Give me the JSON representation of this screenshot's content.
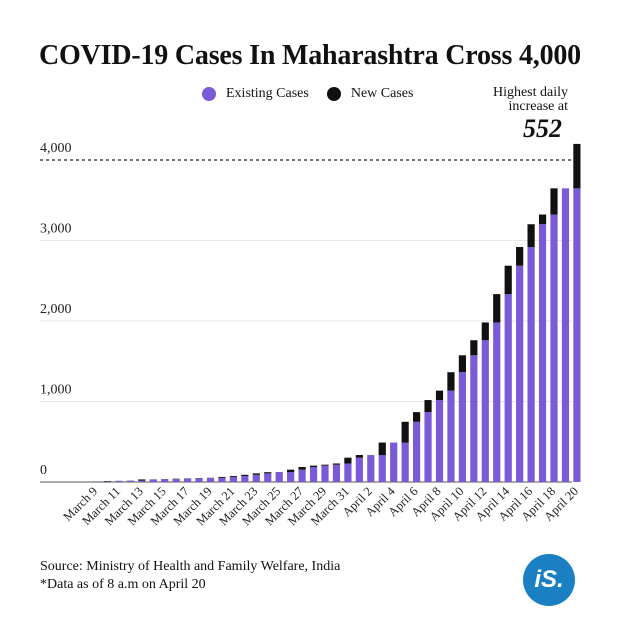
{
  "title": "COVID-19 Cases In Maharashtra Cross 4,000",
  "colors": {
    "existing": "#7a5ad6",
    "new": "#111111",
    "logo": "#1b7fc4"
  },
  "annotation": {
    "line1": "Highest daily",
    "line2": "increase at",
    "value": "552"
  },
  "footer": {
    "source": "Source: Ministry of Health and Family Welfare, India",
    "note": "*Data as of 8 a.m on April 20"
  },
  "logo_text": "iS.",
  "chart_data": {
    "type": "bar",
    "stacked": true,
    "title": "COVID-19 Cases In Maharashtra Cross 4,000",
    "xlabel": "",
    "ylabel": "",
    "ylim": [
      0,
      4300
    ],
    "yticks": [
      0,
      1000,
      2000,
      3000,
      4000
    ],
    "ytick_labels": [
      "0",
      "1,000",
      "2,000",
      "3,000",
      "4,000"
    ],
    "reference_line": 4000,
    "legend": "top-center",
    "categories": [
      "March 9",
      "March 10",
      "March 11",
      "March 12",
      "March 13",
      "March 14",
      "March 15",
      "March 16",
      "March 17",
      "March 18",
      "March 19",
      "March 20",
      "March 21",
      "March 22",
      "March 23",
      "March 24",
      "March 25",
      "March 26",
      "March 27",
      "March 28",
      "March 29",
      "March 30",
      "March 31",
      "April 1",
      "April 2",
      "April 3",
      "April 4",
      "April 5",
      "April 6",
      "April 7",
      "April 8",
      "April 9",
      "April 10",
      "April 11",
      "April 12",
      "April 13",
      "April 14",
      "April 15",
      "April 16",
      "April 17",
      "April 18",
      "April 19",
      "April 20"
    ],
    "tick_labels_shown": [
      "March 9",
      "March 11",
      "March 13",
      "March 15",
      "March 17",
      "March 19",
      "March 21",
      "March 23",
      "March 25",
      "March 27",
      "March 29",
      "March 31",
      "April 2",
      "April 4",
      "April 6",
      "April 8",
      "April 10",
      "April 12",
      "April 14",
      "April 16",
      "April 18",
      "April 20"
    ],
    "series": [
      {
        "name": "Existing Cases",
        "values": [
          2,
          5,
          11,
          14,
          17,
          32,
          33,
          36,
          41,
          45,
          49,
          52,
          63,
          74,
          89,
          107,
          122,
          124,
          153,
          186,
          203,
          215,
          230,
          302,
          335,
          335,
          490,
          490,
          748,
          868,
          1018,
          1135,
          1364,
          1574,
          1761,
          1982,
          2334,
          2687,
          2919,
          3202,
          3323,
          3648,
          3648
        ]
      },
      {
        "name": "New Cases",
        "values": [
          3,
          6,
          3,
          3,
          15,
          1,
          3,
          5,
          4,
          4,
          3,
          11,
          11,
          15,
          18,
          15,
          2,
          29,
          33,
          17,
          12,
          15,
          72,
          33,
          0,
          155,
          0,
          258,
          120,
          150,
          117,
          229,
          210,
          187,
          221,
          352,
          353,
          232,
          283,
          121,
          325,
          0,
          552
        ]
      }
    ]
  }
}
